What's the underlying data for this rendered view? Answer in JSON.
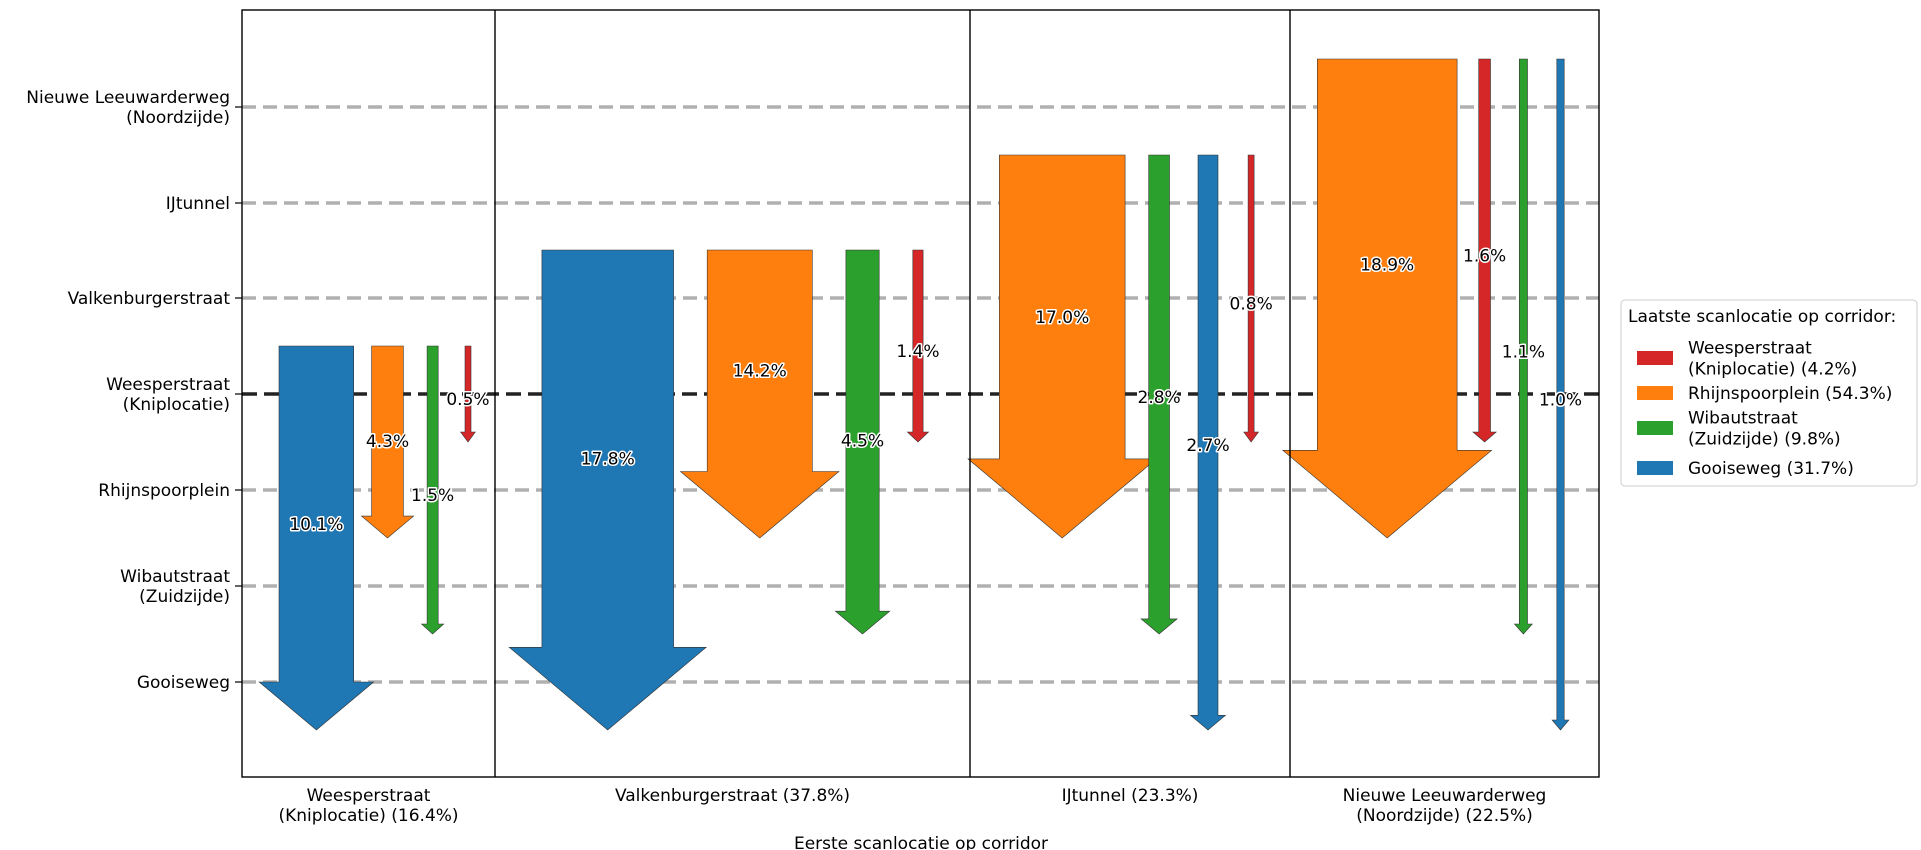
{
  "chart_data": {
    "type": "flow-arrows",
    "xlabel": "Eerste scanlocatie op corridor",
    "ylabel": "",
    "y_levels": [
      "Nieuwe Leeuwarderweg\n(Noordzijde)",
      "IJtunnel",
      "Valkenburgerstraat",
      "Weesperstraat\n(Kniplocatie)",
      "Rhijnspoorplein",
      "Wibautstraat\n(Zuidzijde)",
      "Gooiseweg"
    ],
    "kniplocatie_level": "Weesperstraat\n(Kniplocatie)",
    "groups": [
      "Weesperstraat\n(Kniplocatie) (16.4%)",
      "Valkenburgerstraat (37.8%)",
      "IJtunnel (23.3%)",
      "Nieuwe Leeuwarderweg\n(Noordzijde) (22.5%)"
    ],
    "legend": {
      "title": "Laatste scanlocatie op corridor:",
      "placement": "right",
      "entries": [
        {
          "label": "Weesperstraat\n(Kniplocatie) (4.2%)",
          "color": "#d62728"
        },
        {
          "label": "Rhijnspoorplein (54.3%)",
          "color": "#ff7f0e"
        },
        {
          "label": "Wibautstraat\n(Zuidzijde) (9.8%)",
          "color": "#2ca02c"
        },
        {
          "label": "Gooiseweg (31.7%)",
          "color": "#1f77b4"
        }
      ]
    },
    "flows": [
      {
        "group": 0,
        "from": "Weesperstraat\n(Kniplocatie)",
        "to": "Gooiseweg",
        "value": 10.1,
        "label": "10.1%",
        "color": "#1f77b4"
      },
      {
        "group": 0,
        "from": "Weesperstraat\n(Kniplocatie)",
        "to": "Rhijnspoorplein",
        "value": 4.3,
        "label": "4.3%",
        "color": "#ff7f0e"
      },
      {
        "group": 0,
        "from": "Weesperstraat\n(Kniplocatie)",
        "to": "Wibautstraat\n(Zuidzijde)",
        "value": 1.5,
        "label": "1.5%",
        "color": "#2ca02c"
      },
      {
        "group": 0,
        "from": "Weesperstraat\n(Kniplocatie)",
        "to": "Weesperstraat\n(Kniplocatie)",
        "value": 0.5,
        "label": "0.5%",
        "color": "#d62728"
      },
      {
        "group": 1,
        "from": "Valkenburgerstraat",
        "to": "Gooiseweg",
        "value": 17.8,
        "label": "17.8%",
        "color": "#1f77b4"
      },
      {
        "group": 1,
        "from": "Valkenburgerstraat",
        "to": "Rhijnspoorplein",
        "value": 14.2,
        "label": "14.2%",
        "color": "#ff7f0e"
      },
      {
        "group": 1,
        "from": "Valkenburgerstraat",
        "to": "Wibautstraat\n(Zuidzijde)",
        "value": 4.5,
        "label": "4.5%",
        "color": "#2ca02c"
      },
      {
        "group": 1,
        "from": "Valkenburgerstraat",
        "to": "Weesperstraat\n(Kniplocatie)",
        "value": 1.4,
        "label": "1.4%",
        "color": "#d62728"
      },
      {
        "group": 2,
        "from": "IJtunnel",
        "to": "Rhijnspoorplein",
        "value": 17.0,
        "label": "17.0%",
        "color": "#ff7f0e"
      },
      {
        "group": 2,
        "from": "IJtunnel",
        "to": "Wibautstraat\n(Zuidzijde)",
        "value": 2.8,
        "label": "2.8%",
        "color": "#2ca02c"
      },
      {
        "group": 2,
        "from": "IJtunnel",
        "to": "Gooiseweg",
        "value": 2.7,
        "label": "2.7%",
        "color": "#1f77b4"
      },
      {
        "group": 2,
        "from": "IJtunnel",
        "to": "Weesperstraat\n(Kniplocatie)",
        "value": 0.8,
        "label": "0.8%",
        "color": "#d62728"
      },
      {
        "group": 3,
        "from": "Nieuwe Leeuwarderweg\n(Noordzijde)",
        "to": "Rhijnspoorplein",
        "value": 18.9,
        "label": "18.9%",
        "color": "#ff7f0e"
      },
      {
        "group": 3,
        "from": "Nieuwe Leeuwarderweg\n(Noordzijde)",
        "to": "Weesperstraat\n(Kniplocatie)",
        "value": 1.6,
        "label": "1.6%",
        "color": "#d62728"
      },
      {
        "group": 3,
        "from": "Nieuwe Leeuwarderweg\n(Noordzijde)",
        "to": "Wibautstraat\n(Zuidzijde)",
        "value": 1.1,
        "label": "1.1%",
        "color": "#2ca02c"
      },
      {
        "group": 3,
        "from": "Nieuwe Leeuwarderweg\n(Noordzijde)",
        "to": "Gooiseweg",
        "value": 1.0,
        "label": "1.0%",
        "color": "#1f77b4"
      }
    ],
    "grid": "horizontal dashed"
  }
}
